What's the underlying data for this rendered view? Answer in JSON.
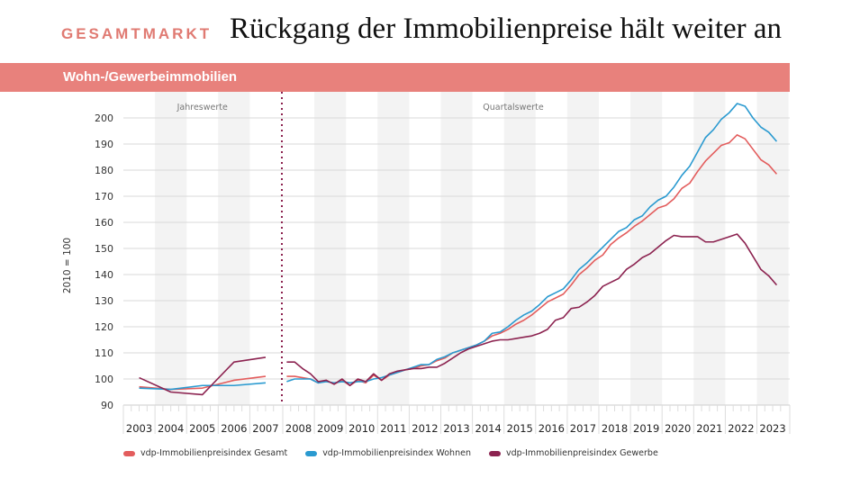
{
  "header": {
    "kicker": "GESAMTMARKT",
    "title": "Rückgang der Immobilienpreise hält weiter an"
  },
  "chart_data": {
    "type": "line",
    "title": "Wohn-/Gewerbeimmobilien",
    "ylabel": "2010 = 100",
    "ylim": [
      90,
      205
    ],
    "yticks": [
      90,
      100,
      110,
      120,
      130,
      140,
      150,
      160,
      170,
      180,
      190,
      200
    ],
    "grid": true,
    "legend_position": "bottom-left",
    "sections": [
      {
        "label": "Jahreswerte",
        "years": [
          2003,
          2004,
          2005,
          2006,
          2007
        ]
      },
      {
        "label": "Quartalswerte",
        "years": [
          2008,
          2009,
          2010,
          2011,
          2012,
          2013,
          2014,
          2015,
          2016,
          2017,
          2018,
          2019,
          2020,
          2021,
          2022,
          2023
        ]
      }
    ],
    "series": [
      {
        "name": "vdp-Immobilienpreisindex Gesamt",
        "color": "#e35d5d",
        "annual": [
          97,
          96,
          96.5,
          99.5,
          101
        ],
        "quarterly": [
          101,
          101,
          100.5,
          100,
          98.5,
          99.5,
          98,
          99.5,
          97.5,
          99.5,
          98.5,
          101.5,
          99.5,
          101.5,
          102.5,
          103.5,
          104,
          105,
          105.5,
          107,
          108,
          110,
          111,
          112,
          113,
          114.5,
          116.5,
          117.5,
          119,
          121,
          122.5,
          124.5,
          127,
          129.5,
          131,
          132.5,
          136,
          140,
          142.5,
          145.5,
          147.5,
          151.5,
          154,
          156,
          158.5,
          160.5,
          163,
          165.5,
          166.5,
          169,
          173,
          175,
          179.5,
          183.5,
          186.5,
          189.5,
          190.5,
          193.5,
          192,
          188,
          184,
          182,
          178.5
        ]
      },
      {
        "name": "vdp-Immobilienpreisindex Wohnen",
        "color": "#2a9ad0",
        "annual": [
          96.5,
          96,
          97.5,
          97.5,
          98.5
        ],
        "quarterly": [
          99,
          100,
          100,
          100,
          98.5,
          99,
          98.5,
          99,
          98.5,
          99,
          99,
          100,
          100.5,
          101.5,
          102.5,
          103.5,
          104.5,
          105.5,
          105.5,
          107.5,
          108.5,
          110,
          111,
          112,
          113,
          114.5,
          117.5,
          118,
          120,
          122.5,
          124.5,
          126,
          128.5,
          131.5,
          133,
          134.5,
          138,
          142,
          144.5,
          147.5,
          150.5,
          153.5,
          156.5,
          158,
          161,
          162.5,
          166,
          168.5,
          170,
          173.5,
          178,
          181.5,
          187,
          192.5,
          195.5,
          199.5,
          202,
          205.5,
          204.5,
          200,
          196.5,
          194.5,
          191
        ]
      },
      {
        "name": "vdp-Immobilienpreisindex Gewerbe",
        "color": "#8c2350",
        "annual": [
          100.5,
          95,
          94,
          106.5,
          108.3
        ],
        "quarterly": [
          106.5,
          106.5,
          104,
          102,
          99,
          99.5,
          98,
          100,
          97.5,
          100,
          99,
          102,
          99.5,
          102,
          103,
          103.5,
          104,
          104,
          104.5,
          104.5,
          106,
          108,
          110,
          111.5,
          112.5,
          113.5,
          114.5,
          115,
          115,
          115.5,
          116,
          116.5,
          117.5,
          119,
          122.5,
          123.5,
          127,
          127.5,
          129.5,
          132,
          135.5,
          137,
          138.5,
          142,
          144,
          146.5,
          148,
          150.5,
          153,
          155,
          154.5,
          154.5,
          154.5,
          152.5,
          152.5,
          153.5,
          154.5,
          155.5,
          152,
          147,
          142,
          139.5,
          136
        ]
      }
    ]
  }
}
